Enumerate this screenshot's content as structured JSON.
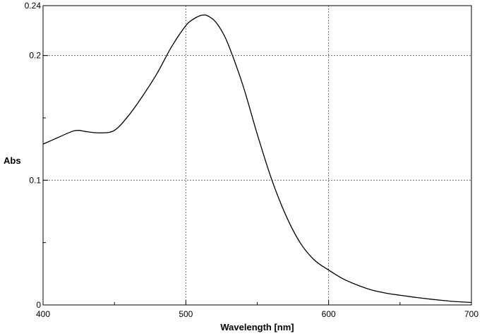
{
  "chart_data": {
    "type": "line",
    "xlabel": "Wavelength [nm]",
    "ylabel": "Abs",
    "xlim": [
      400,
      700
    ],
    "ylim": [
      0,
      0.24
    ],
    "x_ticks": [
      400,
      500,
      600,
      700
    ],
    "x_tick_labels": [
      "400",
      "500",
      "600",
      "700"
    ],
    "x_minor_ticks": [
      450,
      550,
      650
    ],
    "y_ticks": [
      0,
      0.1,
      0.2,
      0.24
    ],
    "y_tick_labels": [
      "0",
      "0.1",
      "0.2",
      "0.24"
    ],
    "y_minor_ticks": [
      0.05,
      0.15
    ],
    "grid": true,
    "series": [
      {
        "x": [
          400,
          410,
          420,
          425,
          430,
          440,
          450,
          460,
          470,
          480,
          490,
          500,
          505,
          510,
          513,
          515,
          520,
          525,
          530,
          540,
          550,
          560,
          570,
          580,
          590,
          600,
          610,
          620,
          630,
          640,
          650,
          660,
          670,
          680,
          690,
          700
        ],
        "y": [
          0.129,
          0.134,
          0.139,
          0.14,
          0.139,
          0.138,
          0.14,
          0.152,
          0.168,
          0.186,
          0.207,
          0.224,
          0.229,
          0.232,
          0.2325,
          0.232,
          0.228,
          0.22,
          0.208,
          0.176,
          0.137,
          0.101,
          0.072,
          0.05,
          0.036,
          0.028,
          0.021,
          0.016,
          0.012,
          0.0095,
          0.0078,
          0.0062,
          0.0048,
          0.0036,
          0.0026,
          0.002
        ]
      }
    ]
  }
}
